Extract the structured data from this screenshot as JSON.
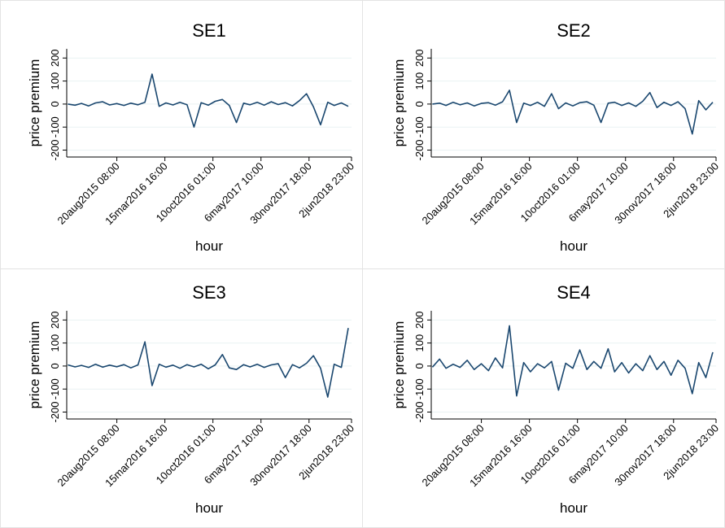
{
  "chart_data": [
    {
      "type": "line",
      "title": "SE1",
      "xlabel": "hour",
      "ylabel": "price premium",
      "color": "#1a476f",
      "x": [
        "2015-01-20",
        "2015-02-20",
        "2015-03-20",
        "2015-04-20",
        "2015-05-20",
        "2015-06-20",
        "2015-07-20",
        "2015-08-20",
        "2015-09-20",
        "2015-10-20",
        "2015-11-20",
        "2015-12-20",
        "2016-01-20",
        "2016-02-20",
        "2016-03-20",
        "2016-04-20",
        "2016-05-20",
        "2016-06-20",
        "2016-07-20",
        "2016-08-20",
        "2016-09-20",
        "2016-10-20",
        "2016-11-20",
        "2016-12-20",
        "2017-01-20",
        "2017-02-20",
        "2017-03-20",
        "2017-04-20",
        "2017-05-20",
        "2017-06-20",
        "2017-07-20",
        "2017-08-20",
        "2017-09-20",
        "2017-10-20",
        "2017-11-20",
        "2017-12-20",
        "2018-01-20",
        "2018-02-20",
        "2018-03-20",
        "2018-04-20",
        "2018-05-20"
      ],
      "values": [
        0,
        -5,
        3,
        -8,
        5,
        10,
        -4,
        2,
        -6,
        4,
        -3,
        8,
        130,
        -10,
        5,
        -4,
        8,
        -3,
        -100,
        6,
        -5,
        12,
        20,
        -6,
        -80,
        4,
        -3,
        8,
        -5,
        10,
        -2,
        6,
        -8,
        15,
        45,
        -12,
        -90,
        8,
        -6,
        5,
        -10
      ],
      "xlim": [
        "2015-01-15 00:00",
        "2018-06-03 00:00"
      ],
      "xticks": [
        {
          "value": "2015-08-20 08:00",
          "label": "20aug2015 08:00"
        },
        {
          "value": "2016-03-15 16:00",
          "label": "15mar2016 16:00"
        },
        {
          "value": "2016-10-10 01:00",
          "label": "10oct2016 01:00"
        },
        {
          "value": "2017-05-06 10:00",
          "label": "6may2017 10:00"
        },
        {
          "value": "2017-11-30 18:00",
          "label": "30nov2017 18:00"
        },
        {
          "value": "2018-06-02 23:00",
          "label": "2jun2018 23:00"
        }
      ],
      "ylim": [
        -230,
        240
      ],
      "yticks": [
        -200,
        -100,
        0,
        100,
        200
      ],
      "grid": true
    },
    {
      "type": "line",
      "title": "SE2",
      "xlabel": "hour",
      "ylabel": "price premium",
      "color": "#1a476f",
      "x": [
        "2015-01-20",
        "2015-02-20",
        "2015-03-20",
        "2015-04-20",
        "2015-05-20",
        "2015-06-20",
        "2015-07-20",
        "2015-08-20",
        "2015-09-20",
        "2015-10-20",
        "2015-11-20",
        "2015-12-20",
        "2016-01-20",
        "2016-02-20",
        "2016-03-20",
        "2016-04-20",
        "2016-05-20",
        "2016-06-20",
        "2016-07-20",
        "2016-08-20",
        "2016-09-20",
        "2016-10-20",
        "2016-11-20",
        "2016-12-20",
        "2017-01-20",
        "2017-02-20",
        "2017-03-20",
        "2017-04-20",
        "2017-05-20",
        "2017-06-20",
        "2017-07-20",
        "2017-08-20",
        "2017-09-20",
        "2017-10-20",
        "2017-11-20",
        "2017-12-20",
        "2018-01-20",
        "2018-02-20",
        "2018-03-20",
        "2018-04-20",
        "2018-05-20"
      ],
      "values": [
        0,
        4,
        -6,
        8,
        -3,
        5,
        -8,
        3,
        6,
        -5,
        10,
        60,
        -80,
        4,
        -6,
        8,
        -10,
        45,
        -20,
        5,
        -8,
        6,
        10,
        -5,
        -80,
        4,
        8,
        -6,
        5,
        -10,
        12,
        50,
        -15,
        8,
        -6,
        10,
        -20,
        -130,
        15,
        -25,
        8
      ],
      "xlim": [
        "2015-01-15 00:00",
        "2018-06-03 00:00"
      ],
      "xticks": [
        {
          "value": "2015-08-20 08:00",
          "label": "20aug2015 08:00"
        },
        {
          "value": "2016-03-15 16:00",
          "label": "15mar2016 16:00"
        },
        {
          "value": "2016-10-10 01:00",
          "label": "10oct2016 01:00"
        },
        {
          "value": "2017-05-06 10:00",
          "label": "6may2017 10:00"
        },
        {
          "value": "2017-11-30 18:00",
          "label": "30nov2017 18:00"
        },
        {
          "value": "2018-06-02 23:00",
          "label": "2jun2018 23:00"
        }
      ],
      "ylim": [
        -230,
        240
      ],
      "yticks": [
        -200,
        -100,
        0,
        100,
        200
      ],
      "grid": true
    },
    {
      "type": "line",
      "title": "SE3",
      "xlabel": "hour",
      "ylabel": "price premium",
      "color": "#1a476f",
      "x": [
        "2015-01-20",
        "2015-02-20",
        "2015-03-20",
        "2015-04-20",
        "2015-05-20",
        "2015-06-20",
        "2015-07-20",
        "2015-08-20",
        "2015-09-20",
        "2015-10-20",
        "2015-11-20",
        "2015-12-20",
        "2016-01-20",
        "2016-02-20",
        "2016-03-20",
        "2016-04-20",
        "2016-05-20",
        "2016-06-20",
        "2016-07-20",
        "2016-08-20",
        "2016-09-20",
        "2016-10-20",
        "2016-11-20",
        "2016-12-20",
        "2017-01-20",
        "2017-02-20",
        "2017-03-20",
        "2017-04-20",
        "2017-05-20",
        "2017-06-20",
        "2017-07-20",
        "2017-08-20",
        "2017-09-20",
        "2017-10-20",
        "2017-11-20",
        "2017-12-20",
        "2018-01-20",
        "2018-02-20",
        "2018-03-20",
        "2018-04-20",
        "2018-05-20"
      ],
      "values": [
        5,
        -4,
        3,
        -6,
        8,
        -5,
        4,
        -3,
        6,
        -8,
        5,
        105,
        -85,
        8,
        -5,
        4,
        -10,
        6,
        -4,
        8,
        -12,
        5,
        50,
        -8,
        -15,
        6,
        -4,
        8,
        -6,
        5,
        10,
        -50,
        6,
        -8,
        12,
        45,
        -10,
        -135,
        8,
        -6,
        165
      ],
      "xlim": [
        "2015-01-15 00:00",
        "2018-06-03 00:00"
      ],
      "xticks": [
        {
          "value": "2015-08-20 08:00",
          "label": "20aug2015 08:00"
        },
        {
          "value": "2016-03-15 16:00",
          "label": "15mar2016 16:00"
        },
        {
          "value": "2016-10-10 01:00",
          "label": "10oct2016 01:00"
        },
        {
          "value": "2017-05-06 10:00",
          "label": "6may2017 10:00"
        },
        {
          "value": "2017-11-30 18:00",
          "label": "30nov2017 18:00"
        },
        {
          "value": "2018-06-02 23:00",
          "label": "2jun2018 23:00"
        }
      ],
      "ylim": [
        -230,
        240
      ],
      "yticks": [
        -200,
        -100,
        0,
        100,
        200
      ],
      "grid": true
    },
    {
      "type": "line",
      "title": "SE4",
      "xlabel": "hour",
      "ylabel": "price premium",
      "color": "#1a476f",
      "x": [
        "2015-01-20",
        "2015-02-20",
        "2015-03-20",
        "2015-04-20",
        "2015-05-20",
        "2015-06-20",
        "2015-07-20",
        "2015-08-20",
        "2015-09-20",
        "2015-10-20",
        "2015-11-20",
        "2015-12-20",
        "2016-01-20",
        "2016-02-20",
        "2016-03-20",
        "2016-04-20",
        "2016-05-20",
        "2016-06-20",
        "2016-07-20",
        "2016-08-20",
        "2016-09-20",
        "2016-10-20",
        "2016-11-20",
        "2016-12-20",
        "2017-01-20",
        "2017-02-20",
        "2017-03-20",
        "2017-04-20",
        "2017-05-20",
        "2017-06-20",
        "2017-07-20",
        "2017-08-20",
        "2017-09-20",
        "2017-10-20",
        "2017-11-20",
        "2017-12-20",
        "2018-01-20",
        "2018-02-20",
        "2018-03-20",
        "2018-04-20",
        "2018-05-20"
      ],
      "values": [
        -5,
        30,
        -10,
        8,
        -6,
        25,
        -15,
        10,
        -20,
        35,
        -8,
        175,
        -130,
        15,
        -25,
        10,
        -8,
        20,
        -105,
        12,
        -10,
        70,
        -15,
        20,
        -10,
        75,
        -25,
        15,
        -30,
        10,
        -20,
        45,
        -15,
        20,
        -40,
        25,
        -10,
        -120,
        15,
        -50,
        60
      ],
      "xlim": [
        "2015-01-15 00:00",
        "2018-06-03 00:00"
      ],
      "xticks": [
        {
          "value": "2015-08-20 08:00",
          "label": "20aug2015 08:00"
        },
        {
          "value": "2016-03-15 16:00",
          "label": "15mar2016 16:00"
        },
        {
          "value": "2016-10-10 01:00",
          "label": "10oct2016 01:00"
        },
        {
          "value": "2017-05-06 10:00",
          "label": "6may2017 10:00"
        },
        {
          "value": "2017-11-30 18:00",
          "label": "30nov2017 18:00"
        },
        {
          "value": "2018-06-02 23:00",
          "label": "2jun2018 23:00"
        }
      ],
      "ylim": [
        -230,
        240
      ],
      "yticks": [
        -200,
        -100,
        0,
        100,
        200
      ],
      "grid": true
    }
  ]
}
